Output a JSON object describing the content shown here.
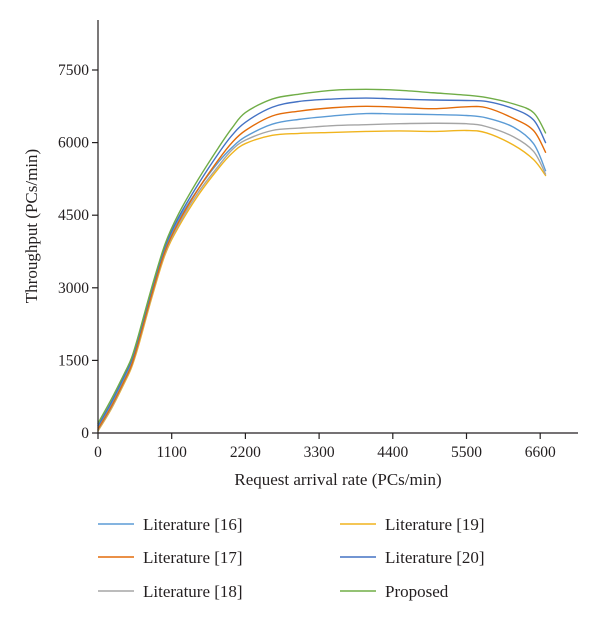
{
  "chart_data": {
    "type": "line",
    "xlabel": "Request arrival rate (PCs/min)",
    "ylabel": "Throughput (PCs/min)",
    "xlim": [
      0,
      6900
    ],
    "ylim": [
      0,
      8000
    ],
    "xticks": [
      0,
      1100,
      2200,
      3300,
      4400,
      5500,
      6600
    ],
    "yticks": [
      0,
      1500,
      3000,
      4500,
      6000,
      7500
    ],
    "grid": false,
    "legend_position": "bottom, two columns",
    "series": [
      {
        "name": "Literature [16]",
        "color": "#5b9bd5",
        "x": [
          0,
          200,
          400,
          500,
          600,
          800,
          1000,
          1200,
          1500,
          1800,
          2000,
          2200,
          2600,
          3000,
          3500,
          4000,
          4500,
          5000,
          5500,
          5800,
          6200,
          6500,
          6680
        ],
        "y": [
          120,
          600,
          1150,
          1450,
          1900,
          2900,
          3800,
          4400,
          5050,
          5600,
          5900,
          6120,
          6380,
          6480,
          6550,
          6600,
          6590,
          6580,
          6560,
          6510,
          6320,
          5980,
          5420
        ]
      },
      {
        "name": "Literature [17]",
        "color": "#e36c0a",
        "x": [
          0,
          200,
          400,
          500,
          600,
          800,
          1000,
          1200,
          1500,
          1800,
          2000,
          2200,
          2600,
          3000,
          3500,
          4000,
          4500,
          5000,
          5500,
          5800,
          6200,
          6500,
          6680
        ],
        "y": [
          80,
          550,
          1100,
          1400,
          1850,
          2850,
          3750,
          4350,
          5050,
          5650,
          6000,
          6250,
          6550,
          6650,
          6720,
          6750,
          6730,
          6700,
          6740,
          6720,
          6500,
          6250,
          5800
        ]
      },
      {
        "name": "Literature [18]",
        "color": "#a5a5a5",
        "x": [
          0,
          200,
          400,
          500,
          600,
          800,
          1000,
          1200,
          1500,
          1800,
          2000,
          2200,
          2600,
          3000,
          3500,
          4000,
          4500,
          5000,
          5500,
          5800,
          6200,
          6500,
          6680
        ],
        "y": [
          60,
          520,
          1080,
          1380,
          1820,
          2820,
          3720,
          4300,
          4980,
          5520,
          5850,
          6050,
          6250,
          6300,
          6350,
          6370,
          6390,
          6400,
          6390,
          6330,
          6120,
          5820,
          5350
        ]
      },
      {
        "name": "Literature [19]",
        "color": "#f0b41e",
        "x": [
          0,
          200,
          400,
          500,
          600,
          800,
          1000,
          1200,
          1500,
          1800,
          2000,
          2200,
          2600,
          3000,
          3500,
          4000,
          4500,
          5000,
          5500,
          5800,
          6200,
          6500,
          6680
        ],
        "y": [
          40,
          500,
          1050,
          1350,
          1780,
          2780,
          3680,
          4250,
          4920,
          5470,
          5780,
          5980,
          6150,
          6190,
          6210,
          6230,
          6240,
          6230,
          6250,
          6200,
          5950,
          5650,
          5320
        ]
      },
      {
        "name": "Literature [20]",
        "color": "#4472c4",
        "x": [
          0,
          200,
          400,
          500,
          600,
          800,
          1000,
          1200,
          1500,
          1800,
          2000,
          2200,
          2600,
          3000,
          3500,
          4000,
          4500,
          5000,
          5500,
          5800,
          6200,
          6500,
          6680
        ],
        "y": [
          150,
          640,
          1200,
          1500,
          1950,
          2950,
          3850,
          4450,
          5150,
          5780,
          6150,
          6420,
          6730,
          6850,
          6900,
          6920,
          6900,
          6880,
          6870,
          6850,
          6700,
          6470,
          6000
        ]
      },
      {
        "name": "Proposed",
        "color": "#70ad47",
        "x": [
          0,
          200,
          400,
          500,
          600,
          800,
          1000,
          1200,
          1500,
          1800,
          2000,
          2200,
          2600,
          3000,
          3500,
          4000,
          4500,
          5000,
          5500,
          5800,
          6200,
          6500,
          6680
        ],
        "y": [
          200,
          700,
          1250,
          1550,
          2000,
          3000,
          3900,
          4520,
          5250,
          5900,
          6300,
          6620,
          6900,
          7000,
          7080,
          7100,
          7080,
          7030,
          6980,
          6930,
          6800,
          6620,
          6200
        ]
      }
    ]
  }
}
